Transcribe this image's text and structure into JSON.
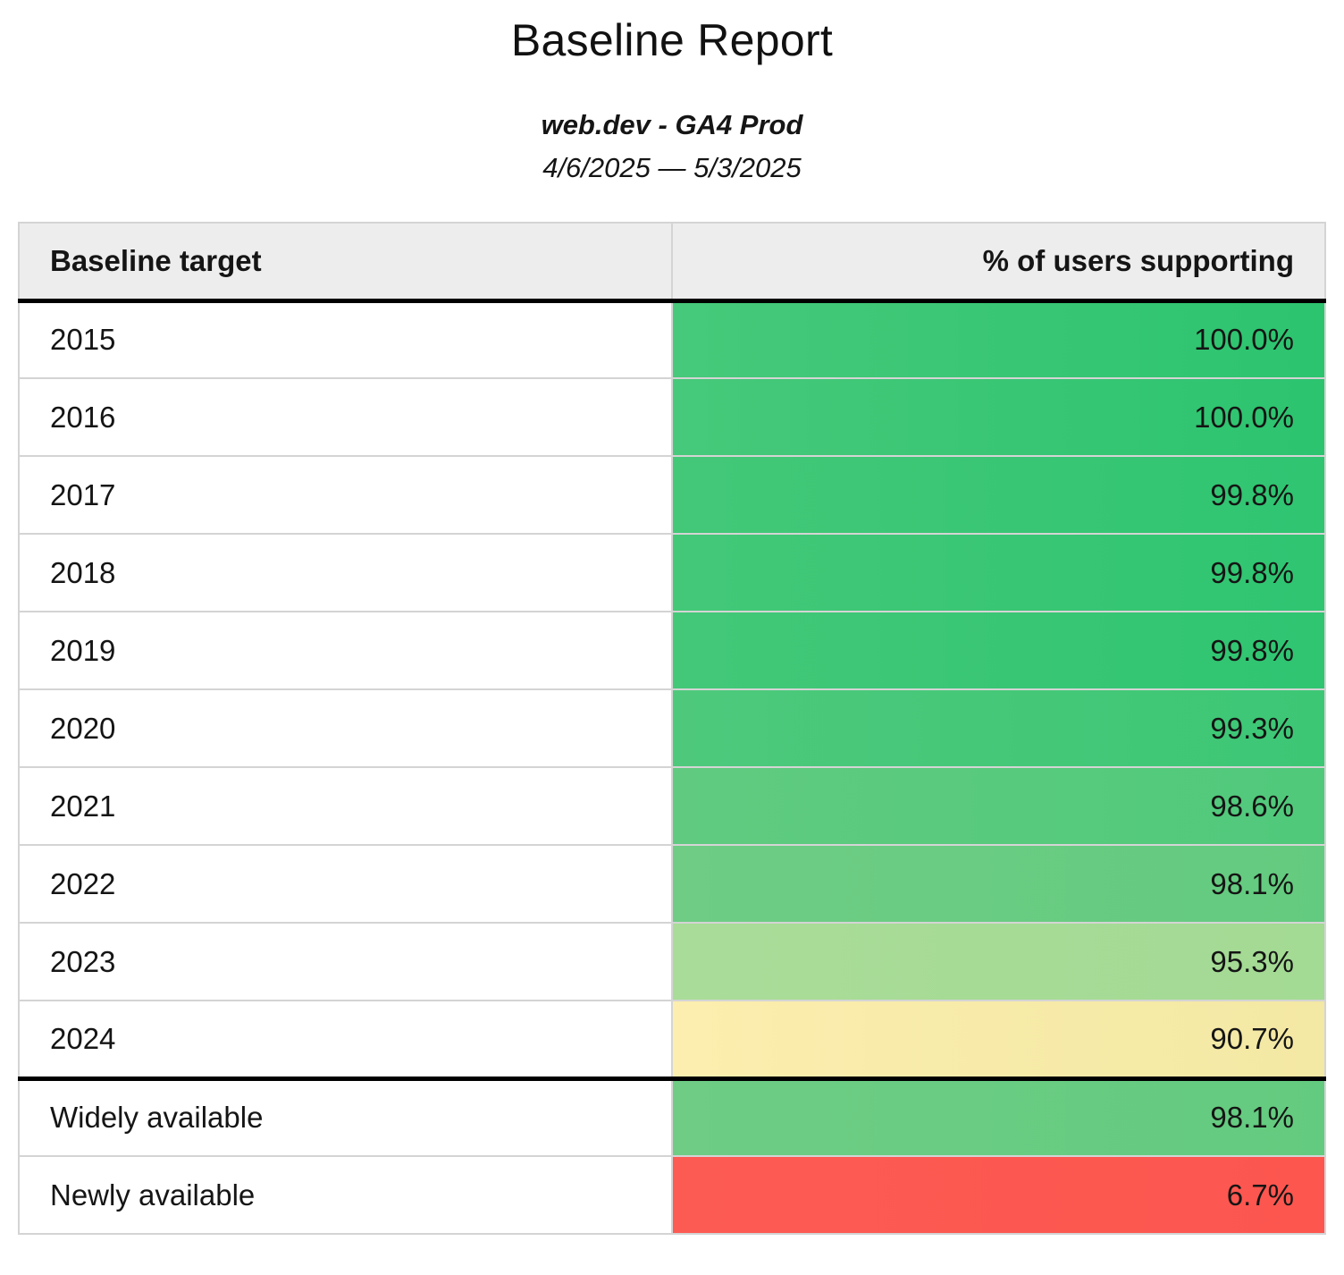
{
  "page": {
    "title": "Baseline Report",
    "subtitle": "web.dev - GA4 Prod",
    "date_range": "4/6/2025 — 5/3/2025"
  },
  "table": {
    "columns": [
      {
        "label": "Baseline target"
      },
      {
        "label": "% of users supporting"
      }
    ],
    "rows": [
      {
        "target": "2015",
        "value": "100.0%",
        "color_left": "#46c97a",
        "color_right": "#2cc46f",
        "heavy_border_below": false
      },
      {
        "target": "2016",
        "value": "100.0%",
        "color_left": "#46c97a",
        "color_right": "#2cc46f",
        "heavy_border_below": false
      },
      {
        "target": "2017",
        "value": "99.8%",
        "color_left": "#43c878",
        "color_right": "#2fc571",
        "heavy_border_below": false
      },
      {
        "target": "2018",
        "value": "99.8%",
        "color_left": "#43c878",
        "color_right": "#2fc571",
        "heavy_border_below": false
      },
      {
        "target": "2019",
        "value": "99.8%",
        "color_left": "#43c878",
        "color_right": "#2fc571",
        "heavy_border_below": false
      },
      {
        "target": "2020",
        "value": "99.3%",
        "color_left": "#4ec97c",
        "color_right": "#3cc775",
        "heavy_border_below": false
      },
      {
        "target": "2021",
        "value": "98.6%",
        "color_left": "#60cb80",
        "color_right": "#50c97b",
        "heavy_border_below": false
      },
      {
        "target": "2022",
        "value": "98.1%",
        "color_left": "#6ecc84",
        "color_right": "#63cb7f",
        "heavy_border_below": false
      },
      {
        "target": "2023",
        "value": "95.3%",
        "color_left": "#a9dc98",
        "color_right": "#a3da94",
        "heavy_border_below": false
      },
      {
        "target": "2024",
        "value": "90.7%",
        "color_left": "#fceeae",
        "color_right": "#f3e8a4",
        "heavy_border_below": true
      },
      {
        "target": "Widely available",
        "value": "98.1%",
        "color_left": "#6ecc84",
        "color_right": "#63cb7f",
        "heavy_border_below": false
      },
      {
        "target": "Newly available",
        "value": "6.7%",
        "color_left": "#fc5b53",
        "color_right": "#fc564f",
        "heavy_border_below": false
      }
    ],
    "colors": {
      "header_bg": "#ededed",
      "border_light": "#d4d4d4",
      "border_heavy": "#000000",
      "green_full": "#2cc46f",
      "yellow_mid": "#f3e8a4",
      "red_low": "#fc5a52"
    }
  },
  "chart_data": {
    "type": "table",
    "title": "Baseline Report",
    "subtitle": "web.dev - GA4 Prod",
    "date_range": "4/6/2025 — 5/3/2025",
    "columns": [
      "Baseline target",
      "% of users supporting"
    ],
    "categories": [
      "2015",
      "2016",
      "2017",
      "2018",
      "2019",
      "2020",
      "2021",
      "2022",
      "2023",
      "2024",
      "Widely available",
      "Newly available"
    ],
    "values": [
      100.0,
      100.0,
      99.8,
      99.8,
      99.8,
      99.3,
      98.6,
      98.1,
      95.3,
      90.7,
      98.1,
      6.7
    ],
    "value_format": "percent",
    "cell_coloring": "green-to-yellow-to-red heatmap by value, applied to value column background",
    "layout": "two-column table, value column right-aligned, heavy black rule under header and under 2024 row"
  }
}
